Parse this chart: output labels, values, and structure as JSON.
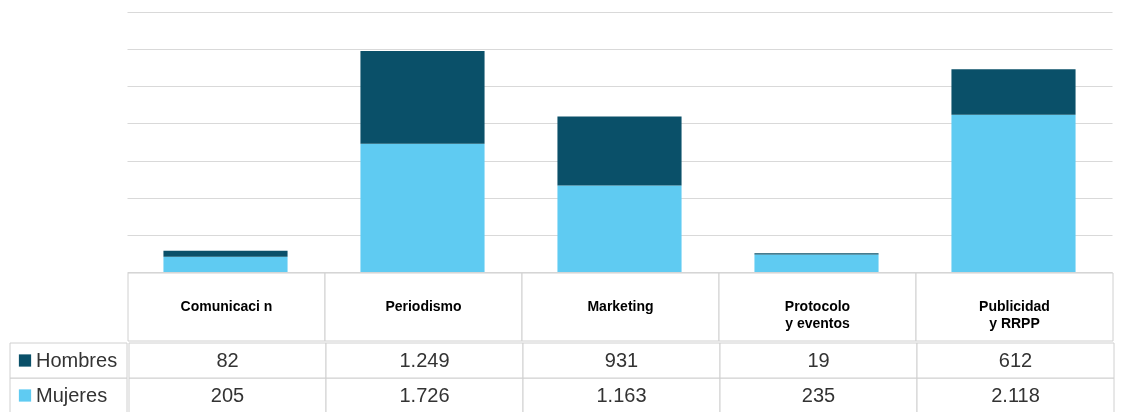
{
  "chart_data": {
    "type": "bar",
    "stacked": true,
    "categories": [
      "Comunicaci n",
      "Periodismo",
      "Marketing",
      "Protocolo\ny eventos",
      "Publicidad\ny RRPP"
    ],
    "series": [
      {
        "name": "Mujeres",
        "color": "#5fcbf2",
        "values": [
          205,
          1726,
          1163,
          235,
          2118
        ],
        "value_labels": [
          "205",
          "1.726",
          "1.163",
          "235",
          "2.118"
        ]
      },
      {
        "name": "Hombres",
        "color": "#0a5069",
        "values": [
          82,
          1249,
          931,
          19,
          612
        ],
        "value_labels": [
          "82",
          "1.249",
          "931",
          "19",
          "612"
        ]
      }
    ],
    "ylim": [
      0,
      3500
    ],
    "yticks": [
      {
        "value": 0,
        "label": null
      },
      {
        "value": 500,
        "label": null
      },
      {
        "value": 1000,
        "label": null
      },
      {
        "value": 1500,
        "label": null
      },
      {
        "value": 2000,
        "label": null
      },
      {
        "value": 2500,
        "label": null
      },
      {
        "value": 3000,
        "label": null
      },
      {
        "value": 3500,
        "label": null
      }
    ],
    "grid": "y",
    "tick_labels": "x",
    "legend": "bottom left"
  }
}
